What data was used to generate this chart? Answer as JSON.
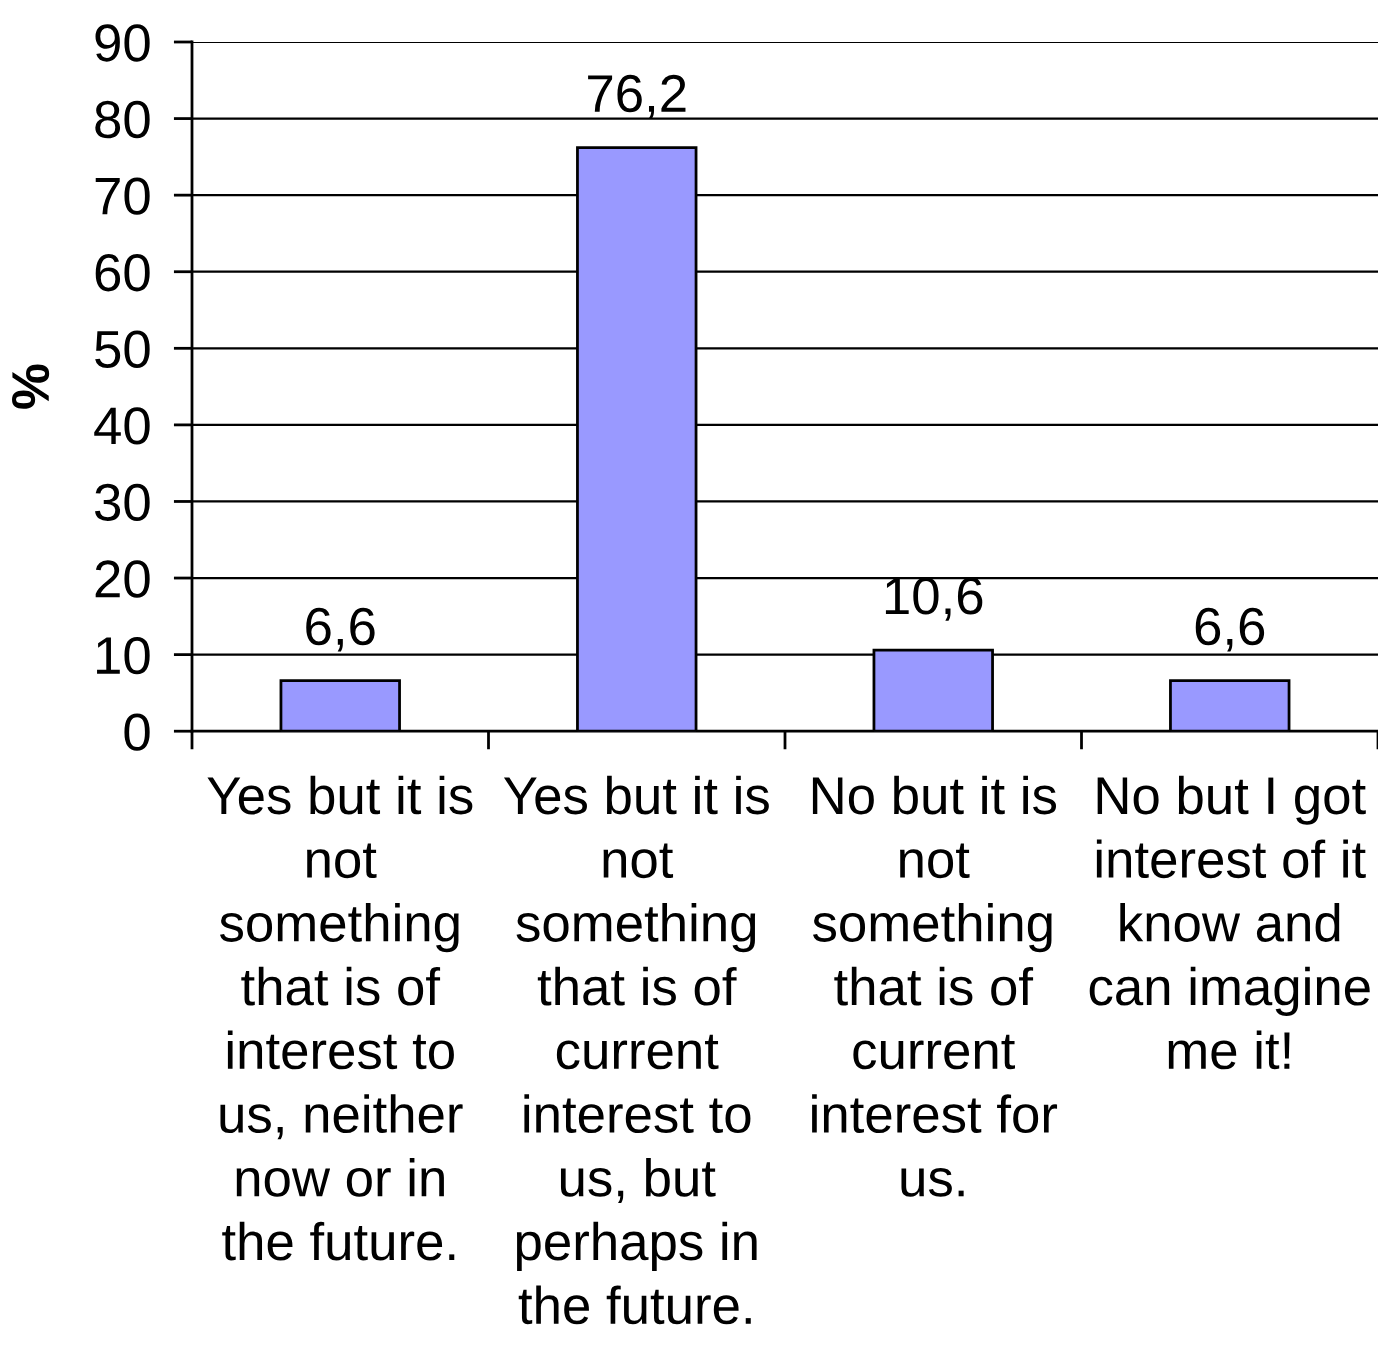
{
  "chart_data": {
    "type": "bar",
    "ylabel": "%",
    "categories": [
      "Yes but it is not something that is of interest to us, neither now or in the future.",
      "Yes but it is not something that is of current interest to us, but perhaps in the future.",
      "No but it is not something that is of current interest for us.",
      "No but I got interest of it know and can imagine me it!"
    ],
    "values": [
      6.6,
      76.2,
      10.6,
      6.6
    ],
    "value_labels": [
      "6,6",
      "76,2",
      "10,6",
      "6,6"
    ],
    "color": "#9999ff",
    "ylim": [
      0,
      90
    ],
    "yticks": [
      0,
      10,
      20,
      30,
      40,
      50,
      60,
      70,
      80,
      90
    ],
    "grid": "y"
  }
}
